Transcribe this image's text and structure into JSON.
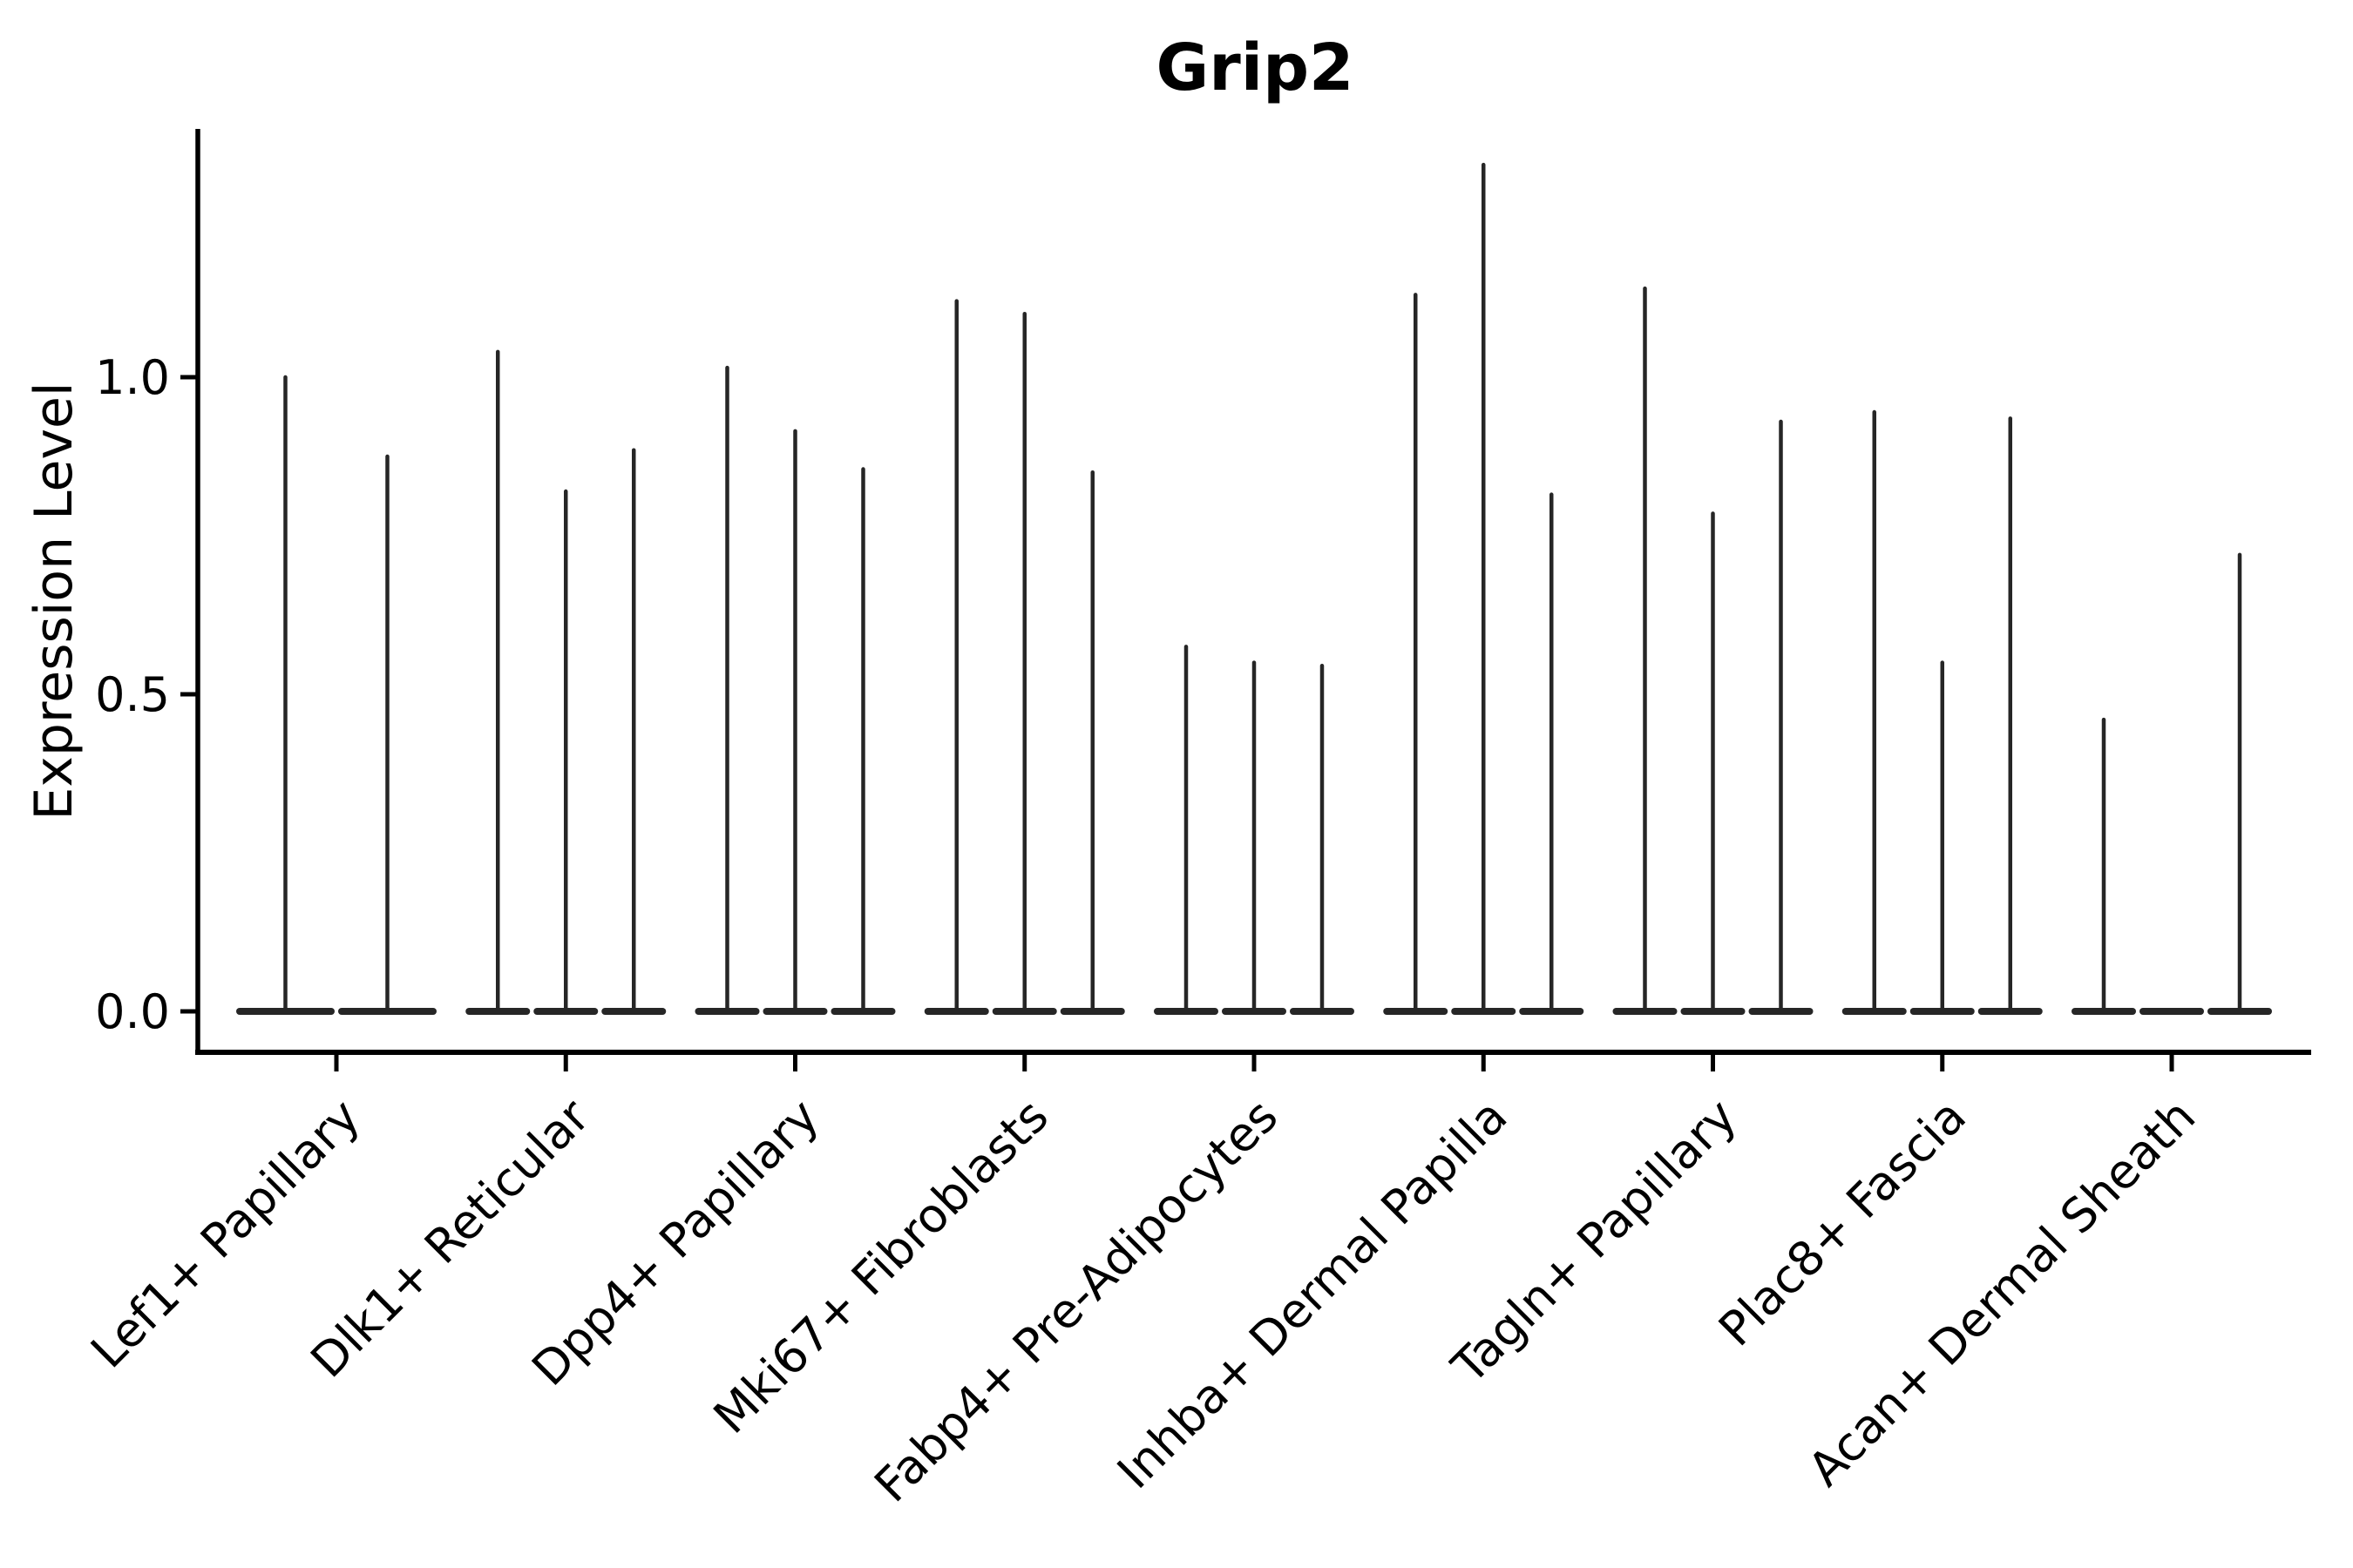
{
  "title": "Grip2",
  "ylabel": "Expression Level",
  "colors": {
    "violin": "#262626",
    "spine": "#000000",
    "text": "#000000",
    "background": "#ffffff"
  },
  "chart_data": {
    "type": "violin",
    "title": "Grip2",
    "xlabel": "",
    "ylabel": "Expression Level",
    "ylim": [
      -0.065,
      1.39
    ],
    "yticks": [
      0.0,
      0.5,
      1.0
    ],
    "ytick_labels": [
      "0.0",
      "0.5",
      "1.0"
    ],
    "grid": false,
    "legend": "none",
    "xtick_rotation": 45,
    "description": "Each category holds 2-3 very narrow violins: a flat body at expression 0 with a thin spike rising to the max expression value.",
    "categories": [
      "Lef1+ Papillary",
      "Dlk1+ Reticular",
      "Dpp4+ Papillary",
      "Mki67+ Fibroblasts",
      "Fabp4+ Pre-Adipocytes",
      "Inhba+ Dermal Papilla",
      "Tagln+ Papillary",
      "Plac8+ Fascia",
      "Acan+ Dermal Sheath"
    ],
    "series": [
      {
        "category": "Lef1+ Papillary",
        "violin_max_values": [
          1.0,
          0.875
        ]
      },
      {
        "category": "Dlk1+ Reticular",
        "violin_max_values": [
          1.04,
          0.82,
          0.885
        ]
      },
      {
        "category": "Dpp4+ Papillary",
        "violin_max_values": [
          1.015,
          0.915,
          0.855
        ]
      },
      {
        "category": "Mki67+ Fibroblasts",
        "violin_max_values": [
          1.12,
          1.1,
          0.85
        ]
      },
      {
        "category": "Fabp4+ Pre-Adipocytes",
        "violin_max_values": [
          0.575,
          0.55,
          0.545
        ]
      },
      {
        "category": "Inhba+ Dermal Papilla",
        "violin_max_values": [
          1.13,
          1.335,
          0.815
        ]
      },
      {
        "category": "Tagln+ Papillary",
        "violin_max_values": [
          1.14,
          0.785,
          0.93
        ]
      },
      {
        "category": "Plac8+ Fascia",
        "violin_max_values": [
          0.945,
          0.55,
          0.935
        ]
      },
      {
        "category": "Acan+ Dermal Sheath",
        "violin_max_values": [
          0.46,
          0.0,
          0.72
        ]
      }
    ]
  }
}
